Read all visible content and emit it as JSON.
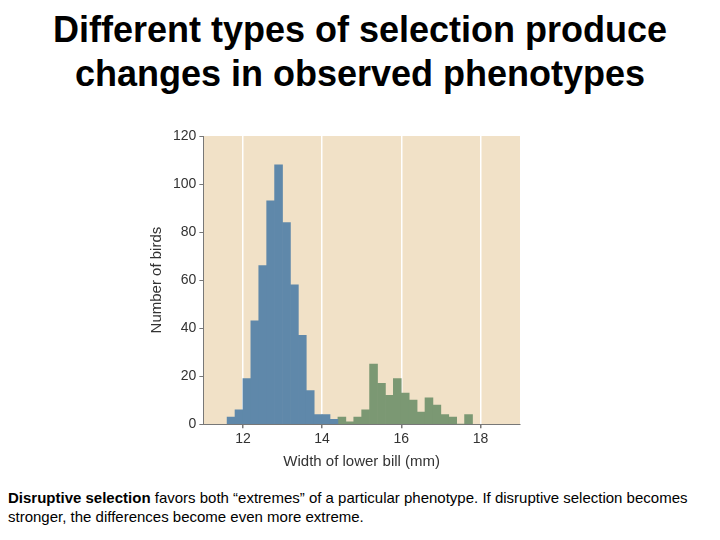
{
  "title": "Different types of selection produce changes in observed phenotypes",
  "caption": {
    "term": "Disruptive selection",
    "text": "favors both “extremes” of a particular phenotype.  If disruptive selection becomes stronger, the differences become even more extreme."
  },
  "chart_data": {
    "type": "histogram",
    "x_label": "Width of lower bill (mm)",
    "y_label": "Number of birds",
    "series": [
      {
        "color": "#5f88aa",
        "bins": [
          11.6,
          11.8,
          12.0,
          12.2,
          12.4,
          12.6,
          12.8,
          13.0,
          13.2,
          13.4,
          13.6,
          13.8,
          14.0,
          14.2,
          14.4
        ],
        "values": [
          3,
          6,
          19,
          43,
          66,
          93,
          108,
          84,
          58,
          37,
          14,
          4,
          4,
          2
        ]
      },
      {
        "color": "#7b9873",
        "bins": [
          14.4,
          14.6,
          14.8,
          15.0,
          15.2,
          15.4,
          15.6,
          15.8,
          16.0,
          16.2,
          16.4,
          16.6,
          16.8,
          17.0,
          17.2,
          17.4,
          17.6,
          17.8
        ],
        "values": [
          3,
          1,
          3,
          6,
          25,
          17,
          12,
          19,
          13,
          10,
          5,
          11,
          8,
          4,
          3,
          0,
          4
        ]
      }
    ],
    "xlim": [
      11,
      19
    ],
    "xticks": [
      12,
      14,
      16,
      18
    ],
    "ylim": [
      0,
      120
    ],
    "yticks": [
      0,
      20,
      40,
      60,
      80,
      100,
      120
    ],
    "grid": true
  }
}
